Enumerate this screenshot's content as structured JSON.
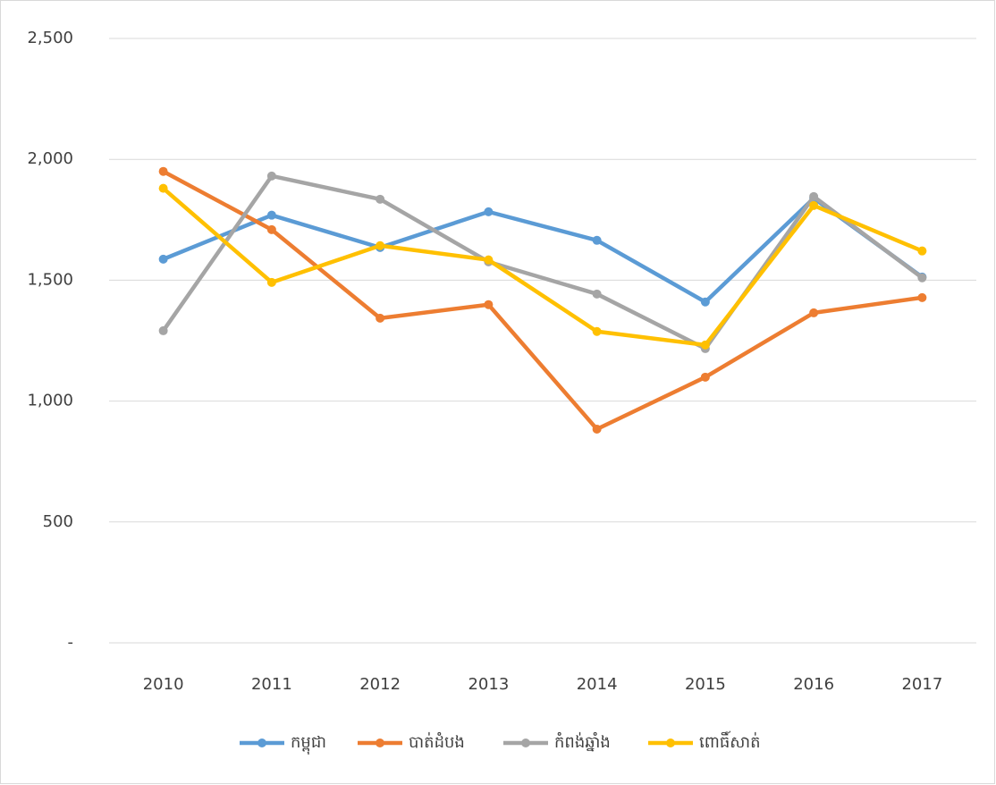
{
  "chart_data": {
    "type": "line",
    "categories": [
      "2010",
      "2011",
      "2012",
      "2013",
      "2014",
      "2015",
      "2016",
      "2017"
    ],
    "series": [
      {
        "name": "កម្ពុជា",
        "color": "#5b9bd5",
        "values": [
          1587,
          1769,
          1635,
          1783,
          1665,
          1410,
          1839,
          1513
        ]
      },
      {
        "name": "បាត់ដំបង",
        "color": "#ed7d31",
        "values": [
          1950,
          1709,
          1343,
          1399,
          884,
          1099,
          1365,
          1428
        ]
      },
      {
        "name": "កំពង់ឆ្នាំង",
        "color": "#a5a5a5",
        "values": [
          1291,
          1931,
          1835,
          1576,
          1443,
          1217,
          1846,
          1510
        ]
      },
      {
        "name": "ពោធិ៍សាត់",
        "color": "#ffc000",
        "values": [
          1880,
          1491,
          1643,
          1584,
          1288,
          1232,
          1809,
          1621
        ]
      }
    ],
    "ylim": [
      0,
      2500
    ],
    "yticks": [
      {
        "value": 0,
        "label": "-"
      },
      500,
      {
        "value": 1000,
        "label": "1,000"
      },
      {
        "value": 1500,
        "label": "1,500"
      },
      {
        "value": 2000,
        "label": "2,000"
      },
      {
        "value": 2500,
        "label": "2,500"
      }
    ],
    "grid": true,
    "legend": "bottom"
  }
}
